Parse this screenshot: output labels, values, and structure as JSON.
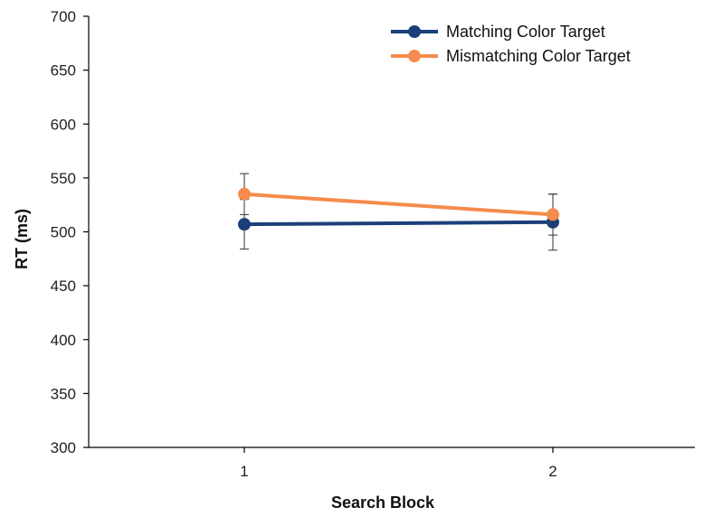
{
  "chart_data": {
    "type": "line",
    "title": "",
    "xlabel": "Search Block",
    "ylabel": "RT (ms)",
    "categories": [
      "1",
      "2"
    ],
    "ylim": [
      300,
      700
    ],
    "yticks": [
      "300",
      "350",
      "400",
      "450",
      "500",
      "550",
      "600",
      "650",
      "700"
    ],
    "grid": false,
    "legend_position": "top-right",
    "series": [
      {
        "name": "Matching Color Target",
        "color": "#1b3f7a",
        "values": [
          507,
          509
        ],
        "error": [
          23,
          26
        ]
      },
      {
        "name": "Mismatching Color Target",
        "color": "#f58b4c",
        "values": [
          535,
          516
        ],
        "error": [
          19,
          19
        ]
      }
    ]
  }
}
